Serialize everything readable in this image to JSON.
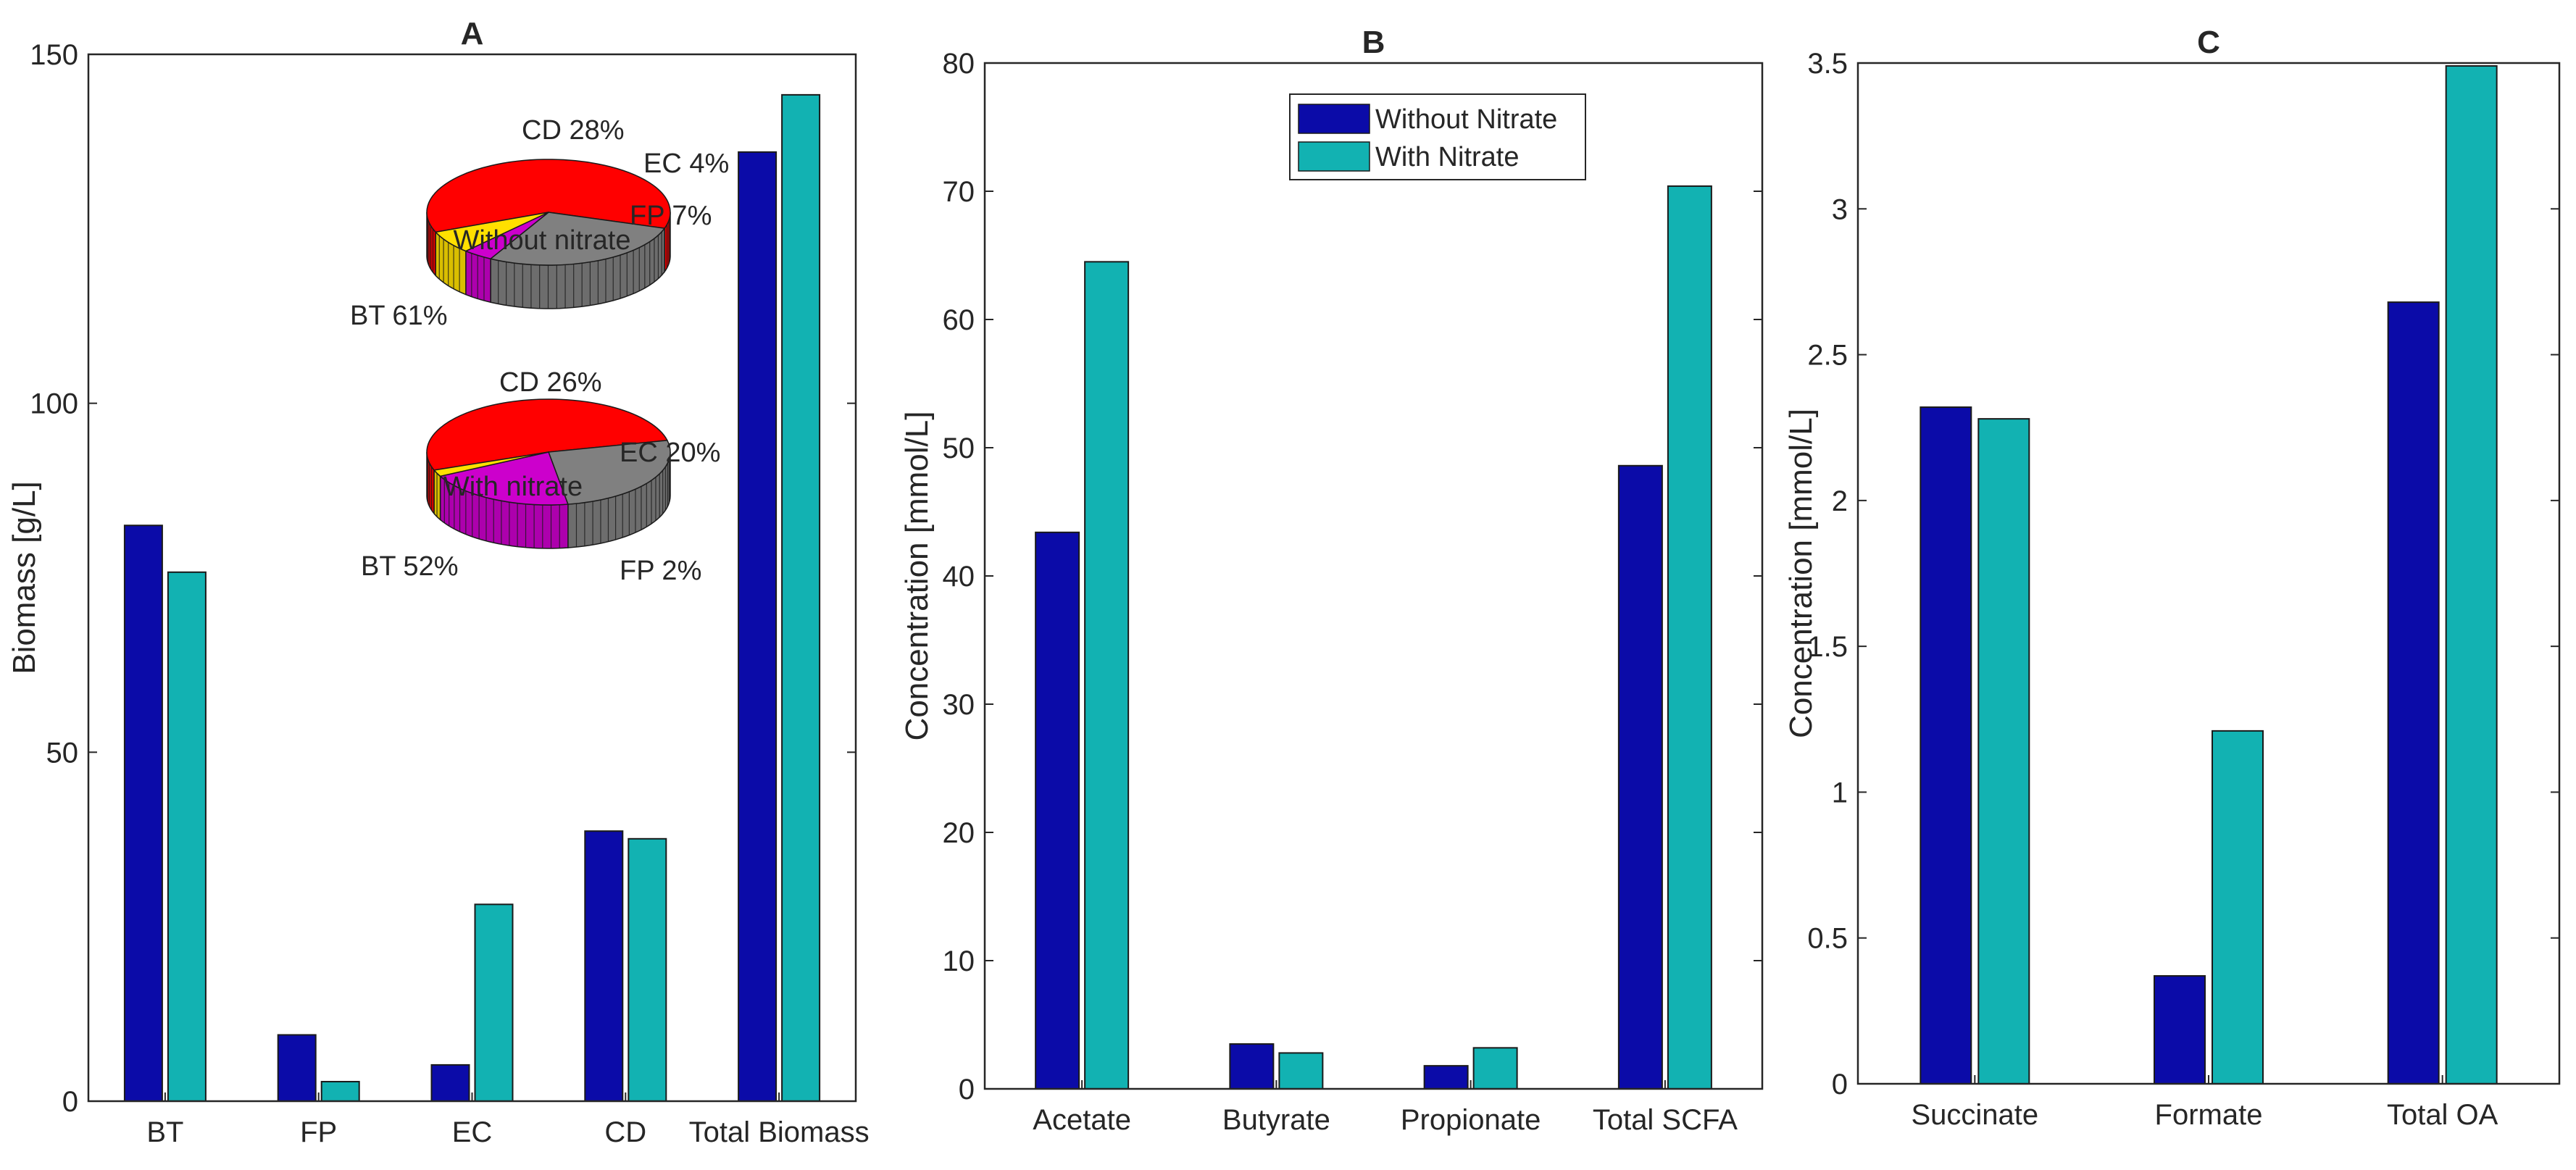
{
  "colors": {
    "without": "#0b0ba8",
    "with": "#12b2b2",
    "axis": "#262626",
    "pie_bt": "#ff0000",
    "pie_cd": "#808080",
    "pie_ec": "#cc00cc",
    "pie_fp": "#ffe000"
  },
  "legend": [
    "Without Nitrate",
    "With Nitrate"
  ],
  "chart_data": [
    {
      "type": "bar",
      "title": "A",
      "xlabel": "",
      "ylabel": "Biomass [g/L]",
      "ylim": [
        0,
        150
      ],
      "yticks": [
        0,
        50,
        100,
        150
      ],
      "categories": [
        "BT",
        "FP",
        "EC",
        "CD",
        "Total Biomass"
      ],
      "series": [
        {
          "name": "Without Nitrate",
          "values": [
            82.5,
            9.5,
            5.2,
            38.7,
            136
          ]
        },
        {
          "name": "With Nitrate",
          "values": [
            75.8,
            2.8,
            28.2,
            37.6,
            144.2
          ]
        }
      ],
      "insets": [
        {
          "type": "pie",
          "label": "Without nitrate",
          "slices": [
            {
              "name": "BT",
              "value": 61,
              "text": "BT 61%"
            },
            {
              "name": "CD",
              "value": 28,
              "text": "CD 28%"
            },
            {
              "name": "EC",
              "value": 4,
              "text": "EC 4%"
            },
            {
              "name": "FP",
              "value": 7,
              "text": "FP 7%"
            }
          ]
        },
        {
          "type": "pie",
          "label": "With nitrate",
          "slices": [
            {
              "name": "BT",
              "value": 52,
              "text": "BT 52%"
            },
            {
              "name": "CD",
              "value": 26,
              "text": "CD 26%"
            },
            {
              "name": "EC",
              "value": 20,
              "text": "EC 20%"
            },
            {
              "name": "FP",
              "value": 2,
              "text": "FP 2%"
            }
          ]
        }
      ]
    },
    {
      "type": "bar",
      "title": "B",
      "xlabel": "",
      "ylabel": "Concentration [mmol/L]",
      "ylim": [
        0,
        80
      ],
      "yticks": [
        0,
        10,
        20,
        30,
        40,
        50,
        60,
        70,
        80
      ],
      "categories": [
        "Acetate",
        "Butyrate",
        "Propionate",
        "Total SCFA"
      ],
      "legend": "top-center",
      "series": [
        {
          "name": "Without Nitrate",
          "values": [
            43.4,
            3.5,
            1.8,
            48.6
          ]
        },
        {
          "name": "With Nitrate",
          "values": [
            64.5,
            2.8,
            3.2,
            70.4
          ]
        }
      ]
    },
    {
      "type": "bar",
      "title": "C",
      "xlabel": "",
      "ylabel": "Concentration [mmol/L]",
      "ylim": [
        0,
        3.5
      ],
      "yticks": [
        0,
        0.5,
        1,
        1.5,
        2,
        2.5,
        3,
        3.5
      ],
      "categories": [
        "Succinate",
        "Formate",
        "Total OA"
      ],
      "series": [
        {
          "name": "Without Nitrate",
          "values": [
            2.32,
            0.37,
            2.68
          ]
        },
        {
          "name": "With Nitrate",
          "values": [
            2.28,
            1.21,
            3.49
          ]
        }
      ]
    }
  ]
}
